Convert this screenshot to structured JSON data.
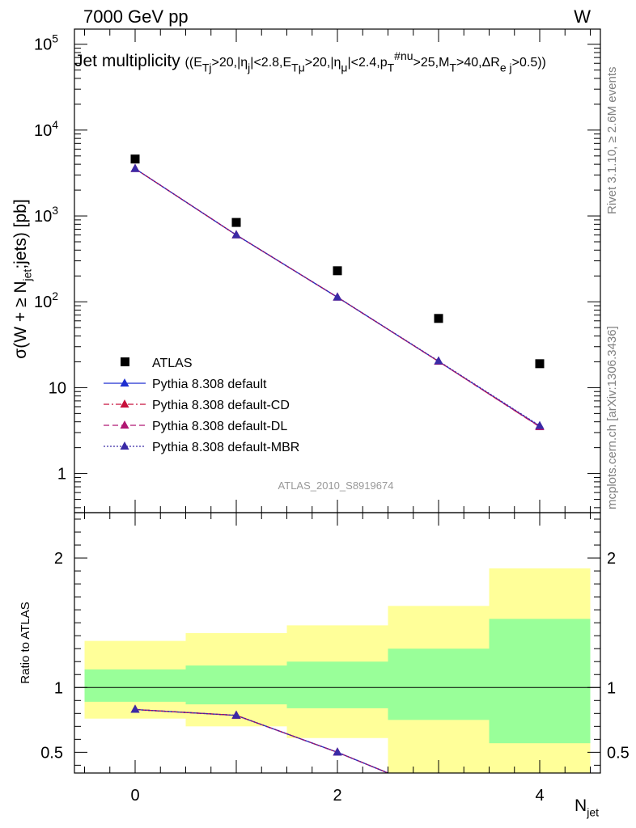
{
  "header": {
    "left": "7000 GeV pp",
    "right": "W"
  },
  "side_labels": {
    "rivet": "Rivet 3.1.10, ≥ 2.6M events",
    "mcplots": "mcplots.cern.ch [arXiv:1306.3436]"
  },
  "chart_data": [
    {
      "type": "scatter",
      "title": "Jet multiplicity ((E_Tj>20,|η_j|<2.8,E_Tμ>20,|η_μ|<2.4,p_T^#nu>25,M_T>40,ΔR_e j>0.5))",
      "ylabel": "σ(W + ≥ N_jet;jets) [pb]",
      "yscale": "log",
      "xlim": [
        -0.6,
        4.6
      ],
      "ylim": [
        0.35,
        150000
      ],
      "y_ticklabels": [
        "1",
        "10",
        "10^2",
        "10^3",
        "10^4",
        "10^5"
      ],
      "watermark": "ATLAS_2010_S8919674",
      "legend_position": "left",
      "x": [
        0,
        1,
        2,
        3,
        4
      ],
      "series": [
        {
          "name": "ATLAS",
          "style": "data",
          "marker": "square",
          "color": "#000000",
          "values": [
            4600,
            840,
            230,
            64,
            19
          ]
        },
        {
          "name": "Pythia 8.308 default",
          "style": "solid",
          "marker": "triangle",
          "color": "#1f2fd0",
          "values": [
            3550,
            600,
            113,
            20.2,
            3.55
          ]
        },
        {
          "name": "Pythia 8.308 default-CD",
          "style": "dashdot",
          "marker": "triangle",
          "color": "#c8103c",
          "values": [
            3550,
            600,
            113,
            20.2,
            3.5
          ]
        },
        {
          "name": "Pythia 8.308 default-DL",
          "style": "dashed",
          "marker": "triangle",
          "color": "#b01873",
          "values": [
            3550,
            600,
            113,
            20.2,
            3.5
          ]
        },
        {
          "name": "Pythia 8.308 default-MBR",
          "style": "dotted",
          "marker": "triangle",
          "color": "#3a2aa6",
          "values": [
            3550,
            600,
            113,
            20.4,
            3.6
          ]
        }
      ]
    },
    {
      "type": "line",
      "ylabel": "Ratio to ATLAS",
      "xlabel": "N_jet",
      "xlim": [
        -0.6,
        4.6
      ],
      "ylim": [
        0.34,
        2.35
      ],
      "x_ticklabels": [
        "0",
        "2",
        "4"
      ],
      "y_ticklabels": [
        "0.5",
        "1",
        "2"
      ],
      "reference_line": 1,
      "bins": [
        [
          -0.5,
          0.5
        ],
        [
          0.5,
          1.5
        ],
        [
          1.5,
          2.5
        ],
        [
          2.5,
          3.5
        ],
        [
          3.5,
          4.5
        ]
      ],
      "band_outer": {
        "color": "#ffff99",
        "low": [
          0.76,
          0.7,
          0.61,
          0.34,
          0.34
        ],
        "high": [
          1.36,
          1.42,
          1.48,
          1.63,
          1.92
        ]
      },
      "band_inner": {
        "color": "#99ff99",
        "low": [
          0.89,
          0.87,
          0.84,
          0.75,
          0.57
        ],
        "high": [
          1.14,
          1.17,
          1.2,
          1.3,
          1.53
        ]
      },
      "series": [
        {
          "name": "Pythia 8.308 default",
          "style": "solid",
          "marker": "triangle",
          "color": "#1f2fd0",
          "x": [
            0,
            1,
            2,
            2.5
          ],
          "values": [
            0.83,
            0.785,
            0.5,
            0.34
          ]
        },
        {
          "name": "Pythia 8.308 default-CD",
          "style": "dashdot",
          "marker": "triangle",
          "color": "#c8103c",
          "x": [
            0,
            1,
            2,
            2.5
          ],
          "values": [
            0.83,
            0.785,
            0.5,
            0.34
          ]
        },
        {
          "name": "Pythia 8.308 default-DL",
          "style": "dashed",
          "marker": "triangle",
          "color": "#b01873",
          "x": [
            0,
            1,
            2,
            2.5
          ],
          "values": [
            0.83,
            0.785,
            0.5,
            0.34
          ]
        },
        {
          "name": "Pythia 8.308 default-MBR",
          "style": "dotted",
          "marker": "triangle",
          "color": "#3a2aa6",
          "x": [
            0,
            1,
            2,
            2.5
          ],
          "values": [
            0.83,
            0.785,
            0.5,
            0.34
          ]
        }
      ]
    }
  ]
}
